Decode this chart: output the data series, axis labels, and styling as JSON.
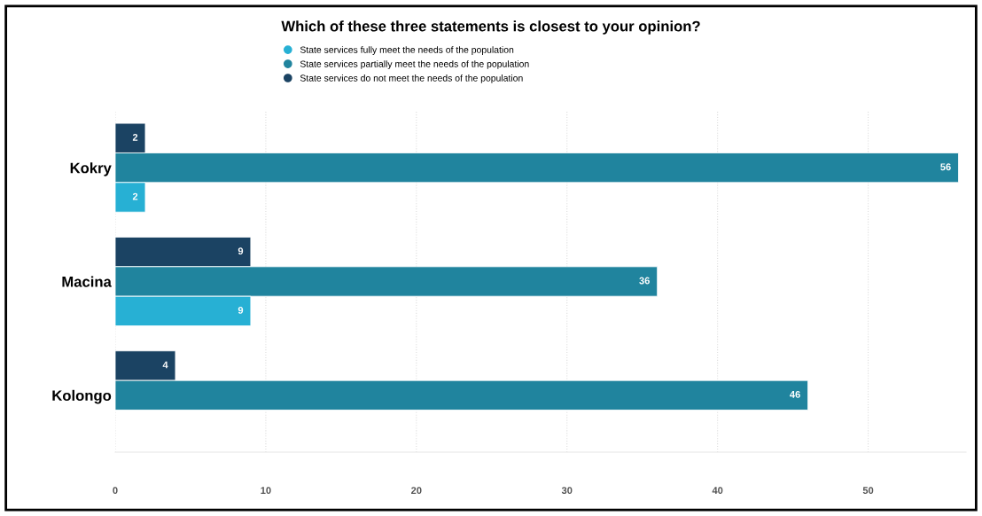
{
  "chart_data": {
    "type": "bar",
    "orientation": "horizontal",
    "title": "Which of these three statements is closest to your opinion?",
    "categories": [
      "Kokry",
      "Macina",
      "Kolongo"
    ],
    "series": [
      {
        "name": "State services do not meet the needs of the population",
        "color": "#1b4363",
        "values": [
          2,
          9,
          4
        ]
      },
      {
        "name": "State services partially meet the needs of the population",
        "color": "#20849e",
        "values": [
          56,
          36,
          46
        ]
      },
      {
        "name": "State services fully meet the needs of the population",
        "color": "#27b0d4",
        "values": [
          2,
          9,
          null
        ]
      }
    ],
    "xlim": [
      0,
      56.5
    ],
    "xticks": [
      0,
      10,
      20,
      30,
      40,
      50
    ],
    "grid": "x",
    "legend": "top",
    "data_labels": true
  }
}
